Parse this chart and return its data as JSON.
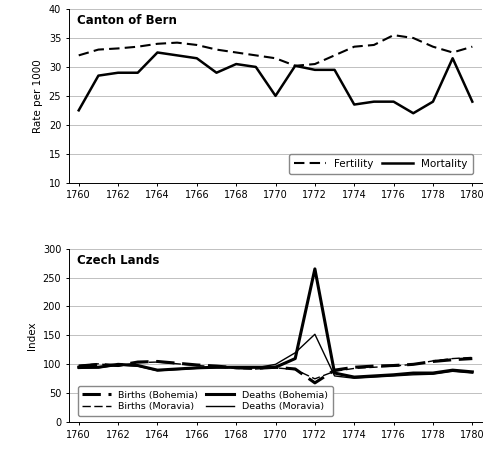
{
  "years": [
    1760,
    1761,
    1762,
    1763,
    1764,
    1765,
    1766,
    1767,
    1768,
    1769,
    1770,
    1771,
    1772,
    1773,
    1774,
    1775,
    1776,
    1777,
    1778,
    1779,
    1780
  ],
  "bern_fertility": [
    32.0,
    33.0,
    33.2,
    33.5,
    34.0,
    34.2,
    33.8,
    33.0,
    32.5,
    32.0,
    31.5,
    30.2,
    30.5,
    32.0,
    33.5,
    33.8,
    35.5,
    35.0,
    33.5,
    32.5,
    33.5
  ],
  "bern_mortality": [
    22.5,
    28.5,
    29.0,
    29.0,
    32.5,
    32.0,
    31.5,
    29.0,
    30.5,
    30.0,
    25.0,
    30.2,
    29.5,
    29.5,
    23.5,
    24.0,
    24.0,
    22.0,
    24.0,
    31.5,
    24.0
  ],
  "bern_ylim": [
    10,
    40
  ],
  "bern_yticks": [
    10,
    15,
    20,
    25,
    30,
    35,
    40
  ],
  "bern_ylabel": "Rate per 1000",
  "bern_title": "Canton of Bern",
  "czech_births_bohemia": [
    97,
    100,
    98,
    104,
    105,
    102,
    99,
    97,
    94,
    93,
    95,
    92,
    68,
    90,
    95,
    97,
    98,
    100,
    105,
    108,
    110
  ],
  "czech_births_moravia": [
    98,
    101,
    97,
    103,
    104,
    101,
    98,
    96,
    93,
    92,
    94,
    91,
    75,
    88,
    93,
    95,
    97,
    100,
    106,
    110,
    112
  ],
  "czech_deaths_bohemia": [
    95,
    95,
    100,
    98,
    90,
    92,
    94,
    95,
    95,
    95,
    95,
    110,
    265,
    85,
    78,
    80,
    82,
    85,
    85,
    90,
    87
  ],
  "czech_deaths_moravia": [
    93,
    94,
    99,
    97,
    89,
    91,
    93,
    94,
    94,
    94,
    100,
    120,
    152,
    80,
    76,
    78,
    80,
    82,
    83,
    88,
    85
  ],
  "czech_ylim": [
    0,
    300
  ],
  "czech_yticks": [
    0,
    50,
    100,
    150,
    200,
    250,
    300
  ],
  "czech_ylabel": "Index",
  "czech_title": "Czech Lands",
  "xticks": [
    1760,
    1762,
    1764,
    1766,
    1768,
    1770,
    1772,
    1774,
    1776,
    1778,
    1780
  ],
  "xticklabels": [
    "1760",
    "1762",
    "1764",
    "1766",
    "1768",
    "1770",
    "1772",
    "1774",
    "1776",
    "1778",
    "1780"
  ],
  "fig_width": 4.92,
  "fig_height": 4.54
}
